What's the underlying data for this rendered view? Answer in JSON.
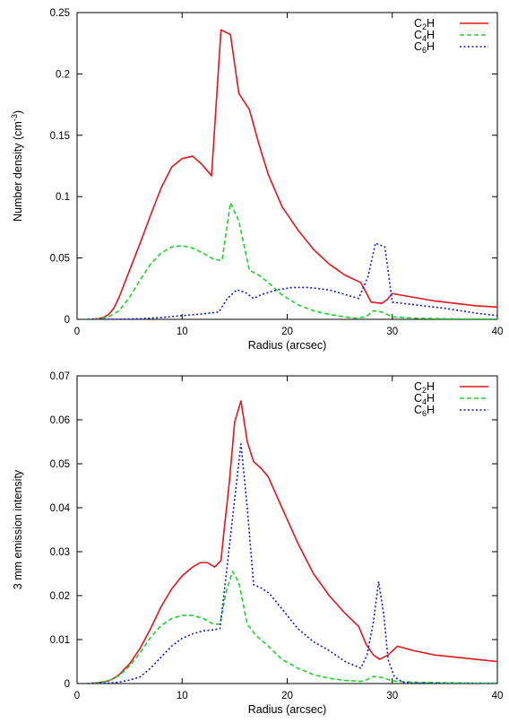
{
  "chart_data": [
    {
      "type": "line",
      "xlabel": "Radius (arcsec)",
      "ylabel_main": "Number density (cm",
      "ylabel_sup": "-3",
      "ylabel_tail": ")",
      "xlim": [
        0,
        40
      ],
      "ylim": [
        0,
        0.25
      ],
      "xticks": [
        0,
        10,
        20,
        30,
        40
      ],
      "yticks": [
        0,
        0.05,
        0.1,
        0.15,
        0.2,
        0.25
      ],
      "xtick_labels": [
        "0",
        "10",
        "20",
        "30",
        "40"
      ],
      "ytick_labels": [
        "0",
        "0.05",
        "0.1",
        "0.15",
        "0.2",
        "0.25"
      ],
      "legend_position": "top-right",
      "series": [
        {
          "name": "C2H",
          "label_main": "C",
          "label_sub": "2",
          "label_tail": "H",
          "color": "#e0161b",
          "style": "solid",
          "x": [
            1,
            2,
            2.5,
            3,
            3.5,
            4,
            5,
            6,
            7,
            8,
            9,
            10,
            11,
            11.8,
            12.8,
            13.7,
            14.6,
            15.4,
            16.4,
            17.3,
            18.2,
            19.5,
            21,
            22.5,
            24,
            25.5,
            27,
            28,
            29,
            29.5,
            30,
            32,
            34,
            36,
            38,
            40
          ],
          "y": [
            0.0,
            0.0005,
            0.0015,
            0.004,
            0.009,
            0.018,
            0.04,
            0.062,
            0.085,
            0.107,
            0.124,
            0.131,
            0.133,
            0.127,
            0.117,
            0.236,
            0.232,
            0.184,
            0.171,
            0.143,
            0.118,
            0.092,
            0.073,
            0.057,
            0.045,
            0.036,
            0.03,
            0.014,
            0.013,
            0.016,
            0.021,
            0.018,
            0.015,
            0.013,
            0.011,
            0.01
          ]
        },
        {
          "name": "C4H",
          "label_main": "C",
          "label_sub": "4",
          "label_tail": "H",
          "color": "#1fd12c",
          "style": "dashed",
          "x": [
            1,
            2,
            3,
            4,
            5,
            6,
            7,
            8,
            9,
            10,
            11,
            12,
            13,
            13.8,
            14.6,
            15.4,
            16.4,
            17.3,
            18.2,
            19.5,
            21,
            22.5,
            24,
            25.5,
            26.5,
            27.5,
            28.2,
            29,
            30,
            32,
            35,
            38,
            40
          ],
          "y": [
            0.0,
            0.0003,
            0.002,
            0.007,
            0.018,
            0.032,
            0.045,
            0.054,
            0.059,
            0.06,
            0.058,
            0.054,
            0.049,
            0.048,
            0.095,
            0.08,
            0.04,
            0.036,
            0.03,
            0.02,
            0.012,
            0.007,
            0.004,
            0.002,
            0.001,
            0.002,
            0.007,
            0.006,
            0.002,
            0.001,
            0.0005,
            0.0002,
            0.0001
          ]
        },
        {
          "name": "C6H",
          "label_main": "C",
          "label_sub": "6",
          "label_tail": "H",
          "color": "#1418c4",
          "style": "dotted",
          "x": [
            1,
            4,
            6,
            8,
            10,
            12,
            13.5,
            14.3,
            15.2,
            16,
            16.8,
            17.5,
            19,
            20.5,
            22,
            24,
            26.8,
            27.7,
            28.4,
            29.3,
            30,
            32,
            35,
            38,
            40
          ],
          "y": [
            0.0,
            0.0001,
            0.0005,
            0.0015,
            0.003,
            0.0045,
            0.006,
            0.017,
            0.024,
            0.022,
            0.017,
            0.02,
            0.024,
            0.026,
            0.026,
            0.024,
            0.017,
            0.035,
            0.062,
            0.059,
            0.014,
            0.012,
            0.009,
            0.005,
            0.003
          ]
        }
      ]
    },
    {
      "type": "line",
      "xlabel": "Radius (arcsec)",
      "ylabel_main": "3 mm emission intensity",
      "ylabel_sup": "",
      "ylabel_tail": "",
      "xlim": [
        0,
        40
      ],
      "ylim": [
        0,
        0.07
      ],
      "xticks": [
        0,
        10,
        20,
        30,
        40
      ],
      "yticks": [
        0,
        0.01,
        0.02,
        0.03,
        0.04,
        0.05,
        0.06,
        0.07
      ],
      "xtick_labels": [
        "0",
        "10",
        "20",
        "30",
        "40"
      ],
      "ytick_labels": [
        "0",
        "0.01",
        "0.02",
        "0.03",
        "0.04",
        "0.05",
        "0.06",
        "0.07"
      ],
      "legend_position": "top-right",
      "series": [
        {
          "name": "C2H",
          "label_main": "C",
          "label_sub": "2",
          "label_tail": "H",
          "color": "#e0161b",
          "style": "solid",
          "x": [
            1,
            2,
            3,
            3.5,
            4,
            5,
            6,
            7,
            8,
            9,
            10,
            11,
            11.7,
            12.4,
            13.1,
            13.7,
            14,
            14.5,
            15,
            15.6,
            16.2,
            16.8,
            17.5,
            18.2,
            19.5,
            21,
            22.5,
            24,
            25.5,
            26.8,
            27.5,
            28.2,
            28.8,
            29.6,
            30.5,
            32,
            34,
            36,
            38,
            40
          ],
          "y": [
            0.0,
            0.0002,
            0.0006,
            0.0012,
            0.002,
            0.0045,
            0.008,
            0.0125,
            0.0175,
            0.0215,
            0.0245,
            0.0265,
            0.0275,
            0.0275,
            0.0265,
            0.028,
            0.035,
            0.046,
            0.0595,
            0.0643,
            0.055,
            0.0505,
            0.049,
            0.047,
            0.04,
            0.032,
            0.025,
            0.02,
            0.016,
            0.013,
            0.009,
            0.0065,
            0.0055,
            0.0065,
            0.0085,
            0.0075,
            0.0065,
            0.006,
            0.0055,
            0.005
          ]
        },
        {
          "name": "C4H",
          "label_main": "C",
          "label_sub": "4",
          "label_tail": "H",
          "color": "#1fd12c",
          "style": "dashed",
          "x": [
            1,
            2,
            3,
            4,
            5,
            6,
            7,
            8,
            9,
            10,
            11,
            12,
            13,
            13.6,
            14.2,
            14.8,
            15.4,
            16.2,
            17,
            18.2,
            19.5,
            21,
            22.5,
            24,
            25.5,
            27,
            27.5,
            28.2,
            29,
            30,
            32,
            35,
            38,
            40
          ],
          "y": [
            0.0,
            0.0002,
            0.0006,
            0.0018,
            0.004,
            0.007,
            0.0105,
            0.0132,
            0.0148,
            0.0155,
            0.0155,
            0.0148,
            0.0135,
            0.0135,
            0.021,
            0.0255,
            0.023,
            0.0135,
            0.011,
            0.0085,
            0.0055,
            0.0035,
            0.002,
            0.0012,
            0.0007,
            0.0005,
            0.0008,
            0.0016,
            0.0014,
            0.0006,
            0.0003,
            0.0002,
            0.0001,
            0.0001
          ]
        },
        {
          "name": "C6H",
          "label_main": "C",
          "label_sub": "6",
          "label_tail": "H",
          "color": "#1418c4",
          "style": "dotted",
          "x": [
            1,
            3,
            4,
            5,
            6,
            7,
            8,
            9,
            10,
            11,
            12,
            13,
            13.6,
            14.3,
            15,
            15.6,
            16.2,
            16.8,
            17.5,
            18.3,
            19.5,
            21,
            22.5,
            24,
            25.5,
            27,
            27.6,
            28.2,
            28.7,
            29.2,
            29.6,
            30.2,
            31,
            32,
            35,
            38,
            40
          ],
          "y": [
            0.0,
            0.0001,
            0.0003,
            0.0008,
            0.0015,
            0.0035,
            0.006,
            0.0085,
            0.0103,
            0.0113,
            0.012,
            0.0122,
            0.0125,
            0.027,
            0.042,
            0.0545,
            0.04,
            0.0225,
            0.0218,
            0.0205,
            0.017,
            0.0125,
            0.0095,
            0.0075,
            0.005,
            0.0035,
            0.0065,
            0.014,
            0.0232,
            0.0155,
            0.0055,
            0.0015,
            0.0003,
            0.0001,
            0.0,
            0.0,
            0.0
          ]
        }
      ]
    }
  ]
}
